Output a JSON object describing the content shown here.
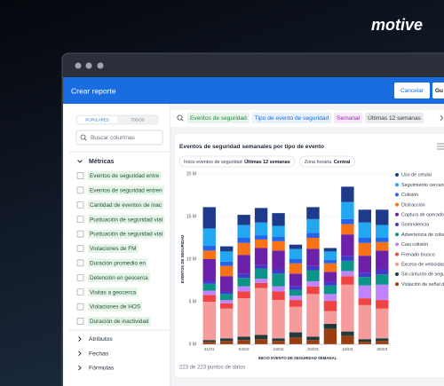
{
  "logo": "motive",
  "header": {
    "title": "Crear reporte",
    "buttons": [
      "Cancelar",
      "Gu"
    ]
  },
  "sidebar": {
    "tabs": [
      "POPULARES",
      "TODOS"
    ],
    "search_placeholder": "Buscar columnas",
    "metrics_title": "Métricas",
    "metrics": [
      "Eventos de seguridad entre",
      "Eventos de seguridad entren",
      "Cantidad de eventos de inac",
      "Puntuación de seguridad vial",
      "Puntuación de seguridad vial",
      "Violaciones de FM",
      "Duración promedio en",
      "Detención en geocerca",
      "Visitas a geocerca",
      "Violaciones de HOS",
      "Duración de inactividad"
    ],
    "sections": [
      "Atributos",
      "Fechas",
      "Fórmulas"
    ]
  },
  "filters": [
    {
      "text": "Eventos de seguridad",
      "color": "#1e8a3c"
    },
    {
      "text": "Tipo de evento de seguridad",
      "color": "#1a6de0"
    },
    {
      "text": "Semanal",
      "color": "#9b27b0"
    },
    {
      "text": "Últimas 12 semanas",
      "color": "#333a45"
    }
  ],
  "chart_data": {
    "type": "stacked_bar",
    "title": "Eventos de seguridad semanales por tipo de evento",
    "chips": [
      {
        "label": "Inicio eventos de seguridad",
        "value": "Últimas 12 semanas"
      },
      {
        "label": "Zona horaria",
        "value": "Central"
      }
    ],
    "y_label": "EVENTOS DE SEGURIDAD",
    "x_label": "INICIO EVENTO DE SEGURIDAD SEMANAL",
    "categories": [
      "21/01",
      null,
      "04/02",
      null,
      "18/02",
      null,
      "03/03",
      null,
      "16/03",
      null,
      "30/03"
    ],
    "ylim": [
      0,
      20
    ],
    "yticks": [
      {
        "value": 0,
        "label": "0 M"
      },
      {
        "value": 5,
        "label": "5 M"
      },
      {
        "value": 10,
        "label": "10 M"
      },
      {
        "value": 15,
        "label": "15 M"
      },
      {
        "value": 20,
        "label": "20 M"
      }
    ],
    "grid": true,
    "series": [
      {
        "name": "Uso de celular",
        "color": "#1e3a8a",
        "values": [
          2.5,
          0.6,
          1.2,
          1.7,
          1.5,
          0.5,
          1.4,
          0.4,
          1.8,
          1.5,
          1.8
        ]
      },
      {
        "name": "Seguimiento cercano",
        "color": "#22a7f0",
        "values": [
          2.0,
          1.2,
          1.5,
          1.5,
          1.3,
          1.2,
          1.6,
          1.0,
          2.0,
          1.8,
          1.5
        ]
      },
      {
        "name": "Colisión",
        "color": "#2563eb",
        "values": [
          0.6,
          0.5,
          0.6,
          0.5,
          0.5,
          0.5,
          0.6,
          0.4,
          0.6,
          0.6,
          0.5
        ]
      },
      {
        "name": "Distracción",
        "color": "#f97316",
        "values": [
          1.0,
          1.2,
          1.4,
          1.0,
          1.1,
          1.2,
          1.3,
          1.0,
          1.2,
          1.5,
          1.0
        ]
      },
      {
        "name": "Captura de operador",
        "color": "#6b21a8",
        "values": [
          2.5,
          1.8,
          2.2,
          2.0,
          2.2,
          1.5,
          2.0,
          1.2,
          2.5,
          2.0,
          2.2
        ]
      },
      {
        "name": "Somnolencia",
        "color": "#4338ca",
        "values": [
          0.4,
          0.3,
          0.5,
          0.4,
          0.5,
          0.4,
          0.5,
          0.4,
          0.6,
          0.5,
          0.6
        ]
      },
      {
        "name": "Advertencia de colisión",
        "color": "#0d9488",
        "values": [
          0.8,
          0.7,
          1.0,
          1.2,
          1.5,
          0.7,
          1.3,
          1.0,
          1.2,
          1.0,
          1.2
        ]
      },
      {
        "name": "Casi colisión",
        "color": "#c084fc",
        "values": [
          0.5,
          0.4,
          0.6,
          0.5,
          0.6,
          0.5,
          0.6,
          0.8,
          0.6,
          1.5,
          1.8
        ]
      },
      {
        "name": "Frenado brusco",
        "color": "#ef4444",
        "values": [
          0.8,
          0.6,
          0.8,
          0.6,
          1.0,
          0.8,
          0.9,
          1.2,
          1.0,
          0.8,
          1.0
        ]
      },
      {
        "name": "Exceso de velocidad",
        "color": "#f59b9b",
        "values": [
          4.5,
          3.5,
          4.5,
          5.5,
          4.5,
          3.0,
          5.0,
          1.5,
          5.5,
          4.0,
          3.5
        ]
      },
      {
        "name": "Sin cinturón de seguridad",
        "color": "#1f3b3a",
        "values": [
          0.2,
          0.3,
          0.4,
          0.5,
          0.3,
          0.6,
          0.4,
          0.6,
          0.5,
          0.3,
          0.3
        ]
      },
      {
        "name": "Violación de señal de alto",
        "color": "#9a3e12",
        "values": [
          0.3,
          0.4,
          0.5,
          0.6,
          0.4,
          0.8,
          0.5,
          1.8,
          1.0,
          0.3,
          0.4
        ]
      }
    ]
  },
  "footer": "223 de 223 puntos de datos"
}
